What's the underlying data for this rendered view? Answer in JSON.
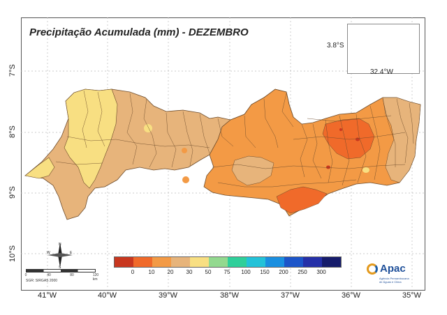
{
  "title": "Precipitação Acumulada (mm) - DEZEMBRO",
  "lat_labels": [
    "7°S",
    "8°S",
    "9°S",
    "10°S"
  ],
  "lon_labels": [
    "41°W",
    "40°W",
    "39°W",
    "38°W",
    "37°W",
    "36°W",
    "35°W"
  ],
  "inset": {
    "lat_label": "3.8°S",
    "lon_label": "32.4°W"
  },
  "legend": {
    "colors": [
      "#c8371f",
      "#f06a2a",
      "#f39a45",
      "#e7b47b",
      "#f8df82",
      "#93d98f",
      "#2fcf9a",
      "#23c2d8",
      "#1a8fe0",
      "#1c55c9",
      "#2530a8",
      "#161c6b"
    ],
    "ticks": [
      "0",
      "10",
      "20",
      "30",
      "50",
      "75",
      "100",
      "150",
      "200",
      "250",
      "300"
    ]
  },
  "compass": {
    "n": "N",
    "s": "S",
    "e": "E",
    "w": "W"
  },
  "scale": {
    "ticks": [
      "0",
      "40",
      "80",
      "120 km"
    ],
    "note": "SGR: SIRGAS 2000"
  },
  "logo": {
    "name": "Apac",
    "subtitle": "Agência Pernambucana de Águas e Clima"
  },
  "colors": {
    "frame": "#555555",
    "grid": "#bbbbbb",
    "outline": "#6b4a2a"
  }
}
